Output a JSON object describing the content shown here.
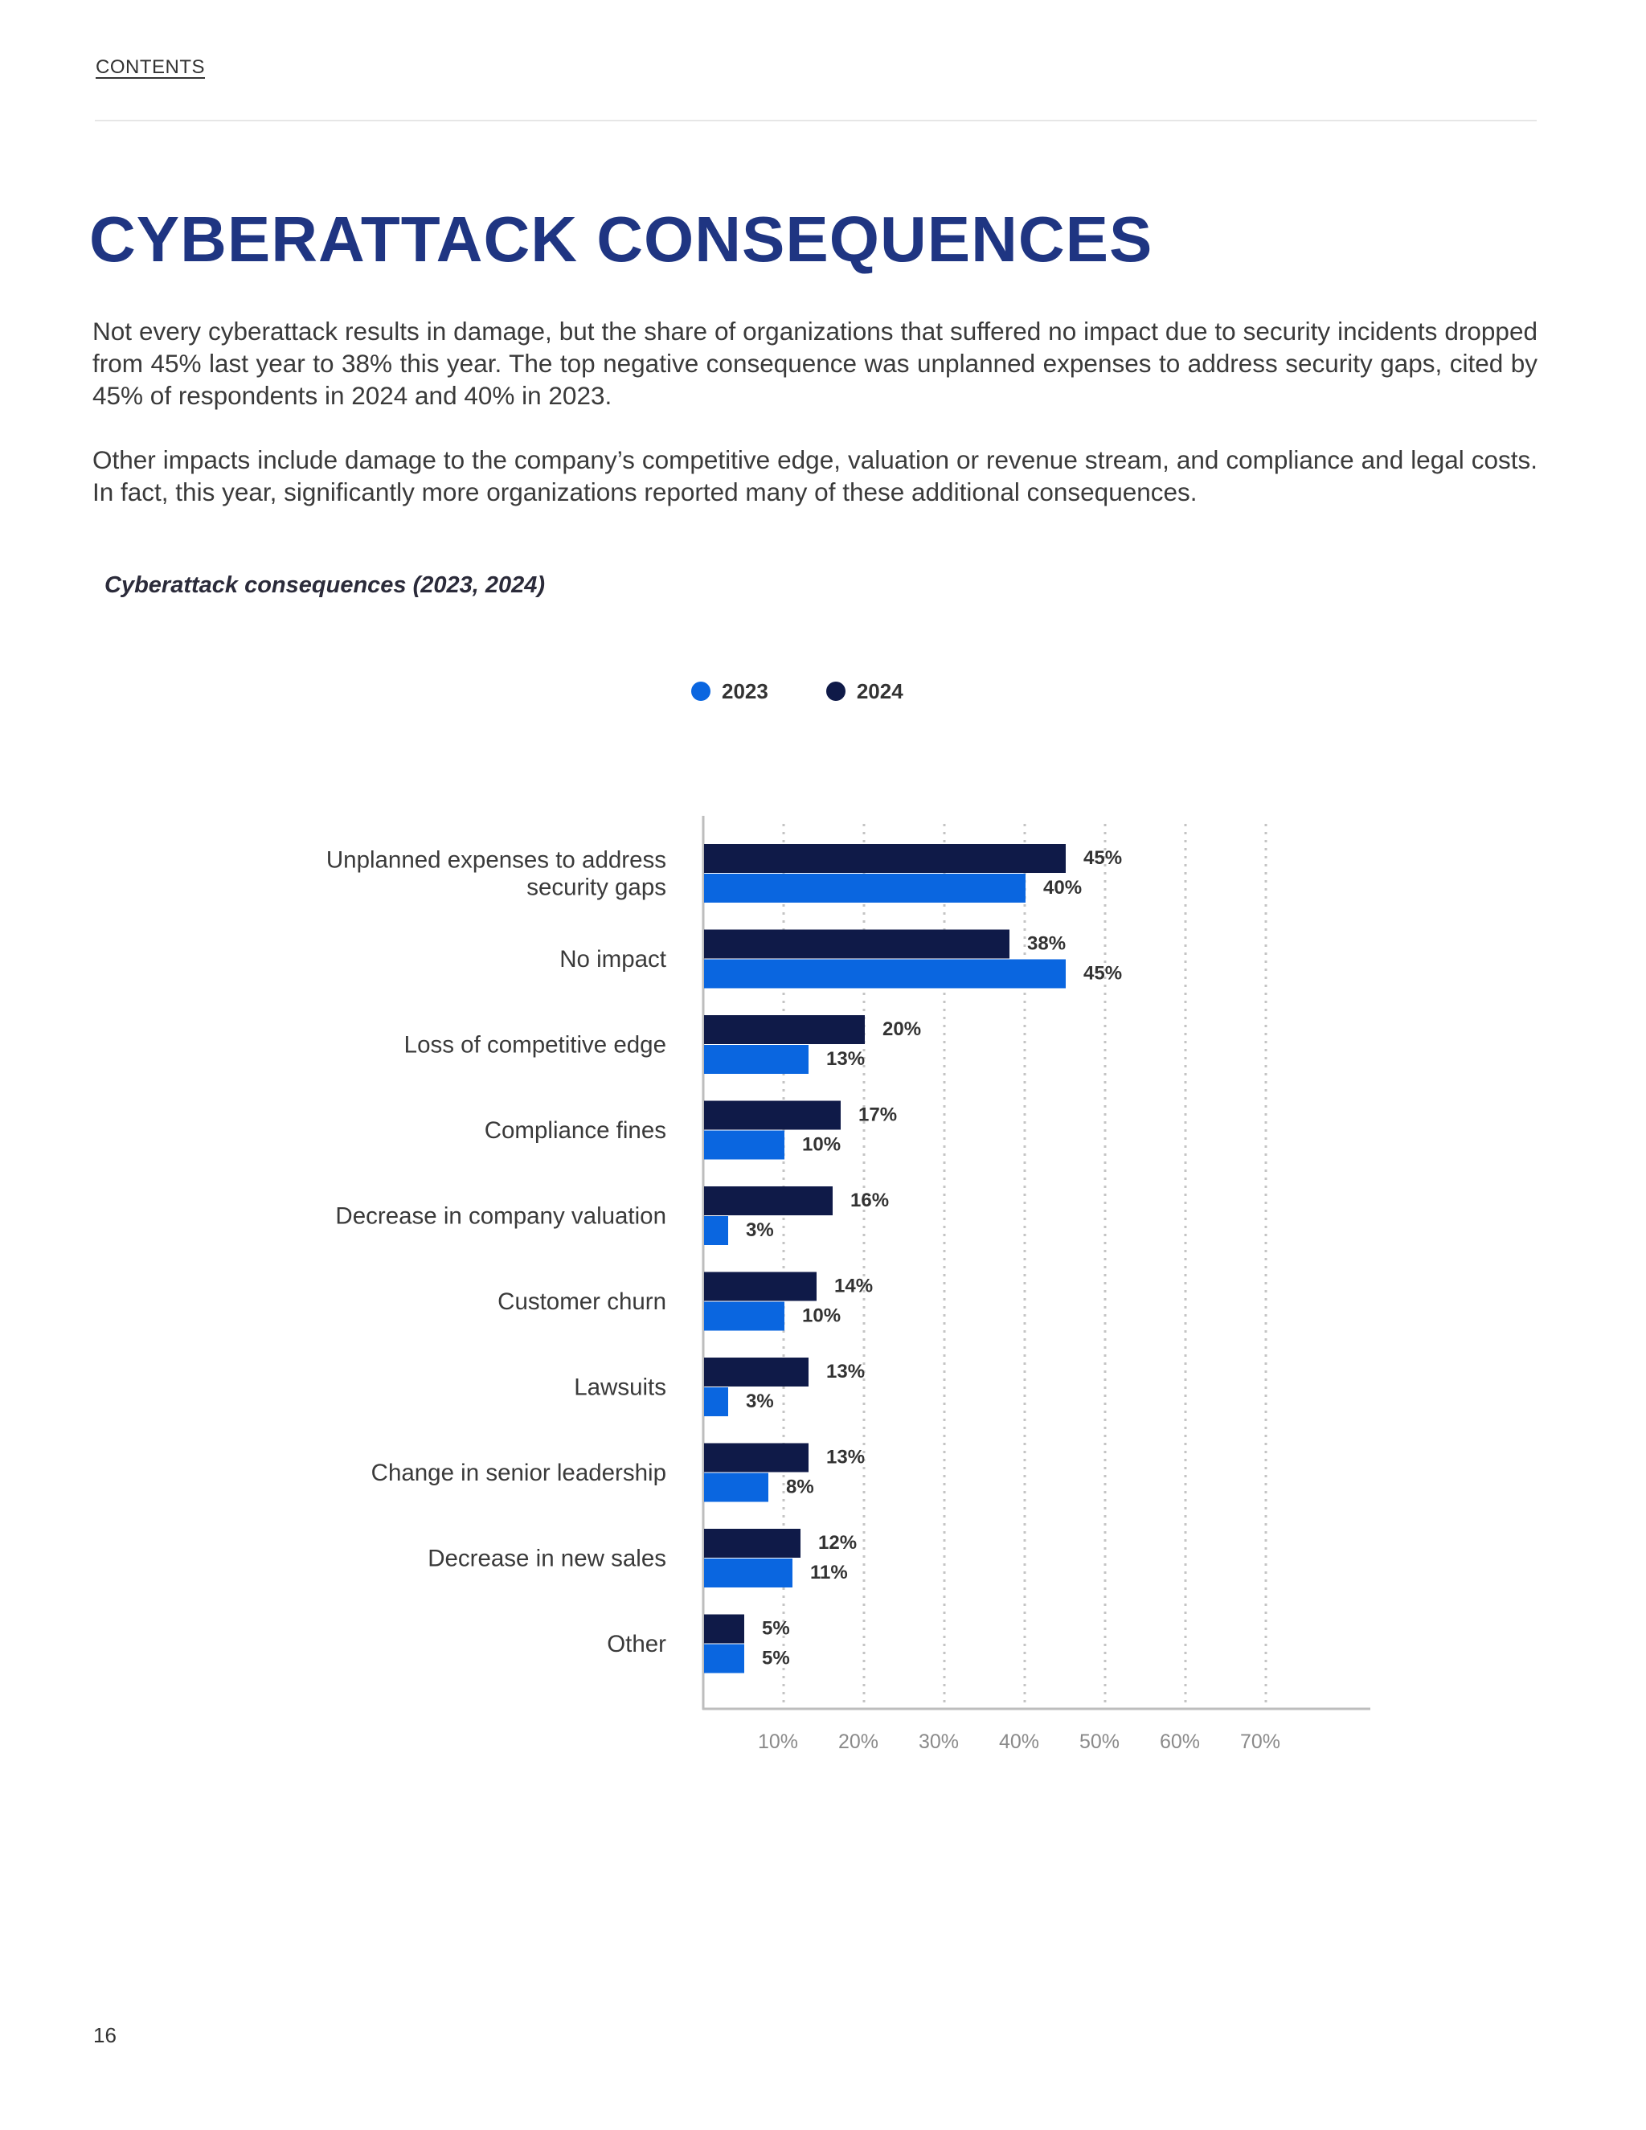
{
  "header": {
    "contents_label": "CONTENTS"
  },
  "title": "CYBERATTACK CONSEQUENCES",
  "paragraphs": [
    "Not every cyberattack results in damage, but the share of organizations that suffered no impact due to security incidents dropped from 45% last year to 38% this year. The top negative consequence was unplanned expenses to address security gaps, cited by 45% of respondents in 2024 and 40% in 2023.",
    "Other impacts include damage to the company’s competitive edge, valuation or revenue stream, and compliance and legal costs. In fact, this year, significantly more organizations reported many of these additional consequences."
  ],
  "chart_data": {
    "type": "bar",
    "orientation": "horizontal",
    "title": "Cyberattack consequences (2023, 2024)",
    "categories": [
      [
        "Unplanned expenses to address",
        "security gaps"
      ],
      [
        "No impact"
      ],
      [
        "Loss of competitive edge"
      ],
      [
        "Compliance fines"
      ],
      [
        "Decrease in company valuation"
      ],
      [
        "Customer churn"
      ],
      [
        "Lawsuits"
      ],
      [
        "Change in senior leadership"
      ],
      [
        "Decrease in new sales"
      ],
      [
        "Other"
      ]
    ],
    "series": [
      {
        "name": "2024",
        "color": "#0f1a48",
        "values": [
          45,
          38,
          20,
          17,
          16,
          14,
          13,
          13,
          12,
          5
        ]
      },
      {
        "name": "2023",
        "color": "#0a66e0",
        "values": [
          40,
          45,
          13,
          10,
          3,
          10,
          3,
          8,
          11,
          5
        ]
      }
    ],
    "legend_order": [
      "2023",
      "2024"
    ],
    "x_ticks": [
      10,
      20,
      30,
      40,
      50,
      60,
      70
    ],
    "x_tick_suffix": "%",
    "value_suffix": "%",
    "xlim": [
      0,
      80
    ],
    "grid": "vertical-dotted",
    "legend_position": "top-center"
  },
  "footer": {
    "page_number": "16"
  }
}
